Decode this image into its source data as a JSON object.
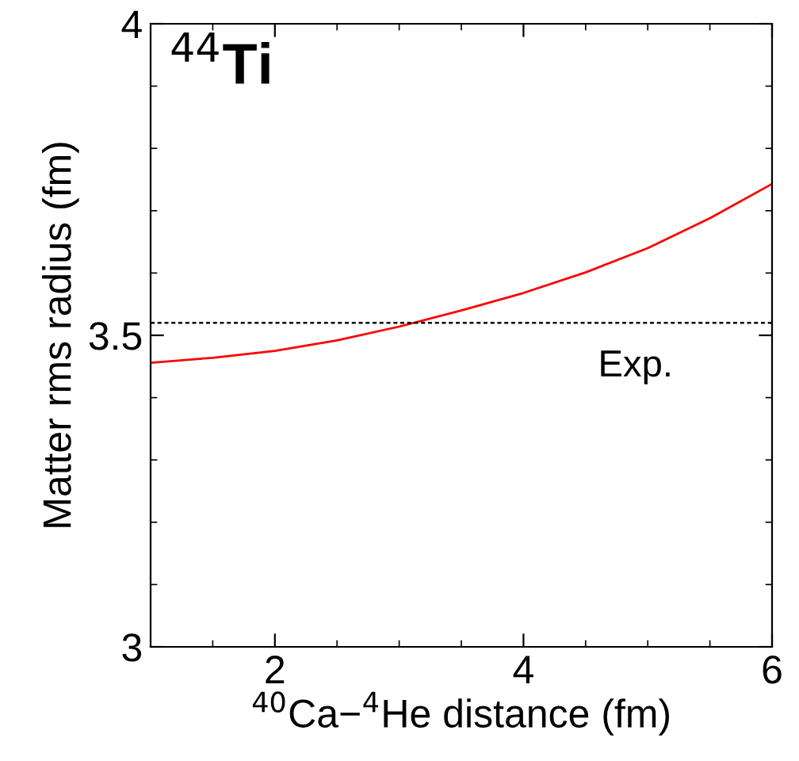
{
  "chart_data": {
    "type": "line",
    "title": "$^{44}$Ti",
    "xlabel": "$^{40}$Ca−$^{4}$He distance (fm)",
    "ylabel": "Matter rms radius (fm)",
    "x": [
      1,
      1.5,
      2,
      2.5,
      3,
      3.5,
      4,
      4.5,
      5,
      5.5,
      6
    ],
    "series": [
      {
        "color": "#ff0000",
        "values": [
          3.456,
          3.464,
          3.475,
          3.492,
          3.514,
          3.54,
          3.568,
          3.601,
          3.64,
          3.688,
          3.743
        ]
      }
    ],
    "ref_lines": [
      {
        "axis": "y",
        "value": 3.52,
        "label": "Exp.",
        "color": "#000000",
        "line_style": "dotted"
      }
    ],
    "xlim": [
      1,
      6
    ],
    "ylim": [
      3,
      4
    ],
    "xticks": [
      2,
      4,
      6
    ],
    "yticks": [
      3,
      {
        "value": 3.5,
        "label": "3.5"
      },
      4
    ],
    "grid": false,
    "legend": false,
    "marker": "none",
    "line_style": "solid"
  }
}
